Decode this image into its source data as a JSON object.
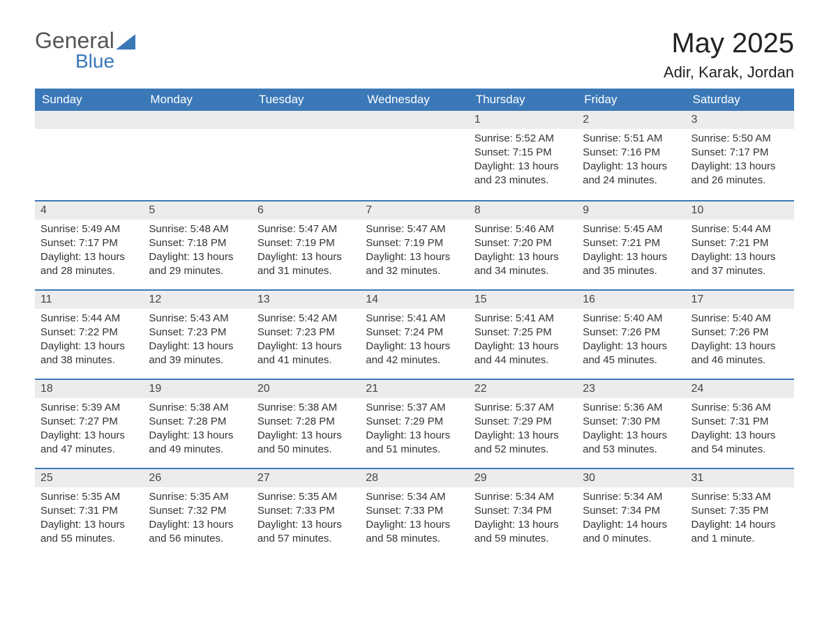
{
  "logo": {
    "text1": "General",
    "text2": "Blue"
  },
  "title": "May 2025",
  "location": "Adir, Karak, Jordan",
  "colors": {
    "header_bg": "#3b78b8",
    "header_text": "#ffffff",
    "daynum_bg": "#ececec",
    "week_border": "#3b78b8",
    "text": "#333333",
    "background": "#ffffff"
  },
  "day_names": [
    "Sunday",
    "Monday",
    "Tuesday",
    "Wednesday",
    "Thursday",
    "Friday",
    "Saturday"
  ],
  "weeks": [
    [
      null,
      null,
      null,
      null,
      {
        "n": "1",
        "sunrise": "5:52 AM",
        "sunset": "7:15 PM",
        "daylight": "13 hours and 23 minutes."
      },
      {
        "n": "2",
        "sunrise": "5:51 AM",
        "sunset": "7:16 PM",
        "daylight": "13 hours and 24 minutes."
      },
      {
        "n": "3",
        "sunrise": "5:50 AM",
        "sunset": "7:17 PM",
        "daylight": "13 hours and 26 minutes."
      }
    ],
    [
      {
        "n": "4",
        "sunrise": "5:49 AM",
        "sunset": "7:17 PM",
        "daylight": "13 hours and 28 minutes."
      },
      {
        "n": "5",
        "sunrise": "5:48 AM",
        "sunset": "7:18 PM",
        "daylight": "13 hours and 29 minutes."
      },
      {
        "n": "6",
        "sunrise": "5:47 AM",
        "sunset": "7:19 PM",
        "daylight": "13 hours and 31 minutes."
      },
      {
        "n": "7",
        "sunrise": "5:47 AM",
        "sunset": "7:19 PM",
        "daylight": "13 hours and 32 minutes."
      },
      {
        "n": "8",
        "sunrise": "5:46 AM",
        "sunset": "7:20 PM",
        "daylight": "13 hours and 34 minutes."
      },
      {
        "n": "9",
        "sunrise": "5:45 AM",
        "sunset": "7:21 PM",
        "daylight": "13 hours and 35 minutes."
      },
      {
        "n": "10",
        "sunrise": "5:44 AM",
        "sunset": "7:21 PM",
        "daylight": "13 hours and 37 minutes."
      }
    ],
    [
      {
        "n": "11",
        "sunrise": "5:44 AM",
        "sunset": "7:22 PM",
        "daylight": "13 hours and 38 minutes."
      },
      {
        "n": "12",
        "sunrise": "5:43 AM",
        "sunset": "7:23 PM",
        "daylight": "13 hours and 39 minutes."
      },
      {
        "n": "13",
        "sunrise": "5:42 AM",
        "sunset": "7:23 PM",
        "daylight": "13 hours and 41 minutes."
      },
      {
        "n": "14",
        "sunrise": "5:41 AM",
        "sunset": "7:24 PM",
        "daylight": "13 hours and 42 minutes."
      },
      {
        "n": "15",
        "sunrise": "5:41 AM",
        "sunset": "7:25 PM",
        "daylight": "13 hours and 44 minutes."
      },
      {
        "n": "16",
        "sunrise": "5:40 AM",
        "sunset": "7:26 PM",
        "daylight": "13 hours and 45 minutes."
      },
      {
        "n": "17",
        "sunrise": "5:40 AM",
        "sunset": "7:26 PM",
        "daylight": "13 hours and 46 minutes."
      }
    ],
    [
      {
        "n": "18",
        "sunrise": "5:39 AM",
        "sunset": "7:27 PM",
        "daylight": "13 hours and 47 minutes."
      },
      {
        "n": "19",
        "sunrise": "5:38 AM",
        "sunset": "7:28 PM",
        "daylight": "13 hours and 49 minutes."
      },
      {
        "n": "20",
        "sunrise": "5:38 AM",
        "sunset": "7:28 PM",
        "daylight": "13 hours and 50 minutes."
      },
      {
        "n": "21",
        "sunrise": "5:37 AM",
        "sunset": "7:29 PM",
        "daylight": "13 hours and 51 minutes."
      },
      {
        "n": "22",
        "sunrise": "5:37 AM",
        "sunset": "7:29 PM",
        "daylight": "13 hours and 52 minutes."
      },
      {
        "n": "23",
        "sunrise": "5:36 AM",
        "sunset": "7:30 PM",
        "daylight": "13 hours and 53 minutes."
      },
      {
        "n": "24",
        "sunrise": "5:36 AM",
        "sunset": "7:31 PM",
        "daylight": "13 hours and 54 minutes."
      }
    ],
    [
      {
        "n": "25",
        "sunrise": "5:35 AM",
        "sunset": "7:31 PM",
        "daylight": "13 hours and 55 minutes."
      },
      {
        "n": "26",
        "sunrise": "5:35 AM",
        "sunset": "7:32 PM",
        "daylight": "13 hours and 56 minutes."
      },
      {
        "n": "27",
        "sunrise": "5:35 AM",
        "sunset": "7:33 PM",
        "daylight": "13 hours and 57 minutes."
      },
      {
        "n": "28",
        "sunrise": "5:34 AM",
        "sunset": "7:33 PM",
        "daylight": "13 hours and 58 minutes."
      },
      {
        "n": "29",
        "sunrise": "5:34 AM",
        "sunset": "7:34 PM",
        "daylight": "13 hours and 59 minutes."
      },
      {
        "n": "30",
        "sunrise": "5:34 AM",
        "sunset": "7:34 PM",
        "daylight": "14 hours and 0 minutes."
      },
      {
        "n": "31",
        "sunrise": "5:33 AM",
        "sunset": "7:35 PM",
        "daylight": "14 hours and 1 minute."
      }
    ]
  ],
  "labels": {
    "sunrise_prefix": "Sunrise: ",
    "sunset_prefix": "Sunset: ",
    "daylight_prefix": "Daylight: "
  }
}
